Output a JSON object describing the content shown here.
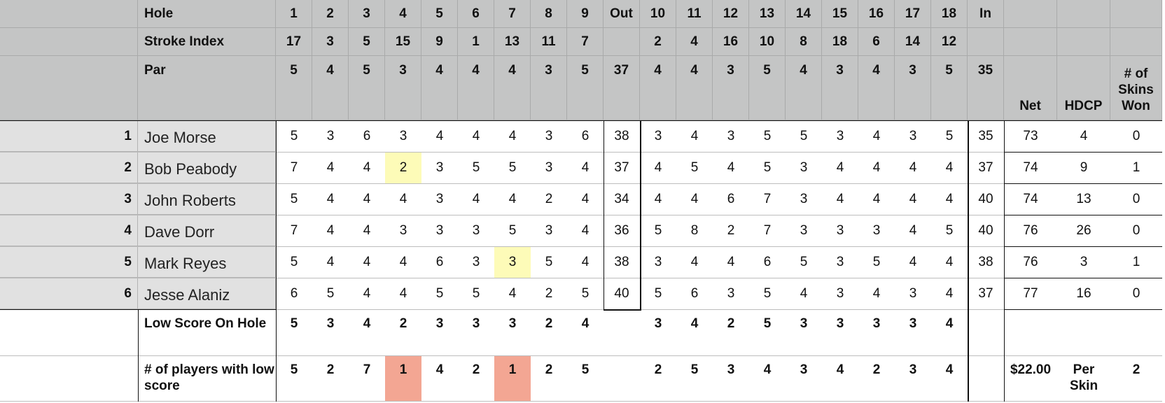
{
  "header_rows": [
    {
      "label": "Hole",
      "values": [
        "1",
        "2",
        "3",
        "4",
        "5",
        "6",
        "7",
        "8",
        "9",
        "Out",
        "10",
        "11",
        "12",
        "13",
        "14",
        "15",
        "16",
        "17",
        "18",
        "In"
      ]
    },
    {
      "label": "Stroke Index",
      "values": [
        "17",
        "3",
        "5",
        "15",
        "9",
        "1",
        "13",
        "11",
        "7",
        "",
        "2",
        "4",
        "16",
        "10",
        "8",
        "18",
        "6",
        "14",
        "12",
        ""
      ]
    },
    {
      "label": "Par",
      "values": [
        "5",
        "4",
        "5",
        "3",
        "4",
        "4",
        "4",
        "3",
        "5",
        "37",
        "4",
        "4",
        "3",
        "5",
        "4",
        "3",
        "4",
        "3",
        "5",
        "35"
      ]
    }
  ],
  "summary_headers": [
    "Net",
    "HDCP",
    "# of\nSkins\nWon"
  ],
  "players": [
    {
      "rank": "1",
      "name": "Joe Morse",
      "scores": [
        "5",
        "3",
        "6",
        "3",
        "4",
        "4",
        "4",
        "3",
        "6",
        "38",
        "3",
        "4",
        "3",
        "5",
        "5",
        "3",
        "4",
        "3",
        "5",
        "35"
      ],
      "net": "73",
      "hdcp": "4",
      "skins": "0"
    },
    {
      "rank": "2",
      "name": "Bob Peabody",
      "scores": [
        "7",
        "4",
        "4",
        "2",
        "3",
        "5",
        "5",
        "3",
        "4",
        "37",
        "4",
        "5",
        "4",
        "5",
        "3",
        "4",
        "4",
        "4",
        "4",
        "37"
      ],
      "net": "74",
      "hdcp": "9",
      "skins": "1"
    },
    {
      "rank": "3",
      "name": "John Roberts",
      "scores": [
        "5",
        "4",
        "4",
        "4",
        "3",
        "4",
        "4",
        "2",
        "4",
        "34",
        "4",
        "4",
        "6",
        "7",
        "3",
        "4",
        "4",
        "4",
        "4",
        "40"
      ],
      "net": "74",
      "hdcp": "13",
      "skins": "0"
    },
    {
      "rank": "4",
      "name": "Dave Dorr",
      "scores": [
        "7",
        "4",
        "4",
        "3",
        "3",
        "3",
        "5",
        "3",
        "4",
        "36",
        "5",
        "8",
        "2",
        "7",
        "3",
        "3",
        "3",
        "4",
        "5",
        "40"
      ],
      "net": "76",
      "hdcp": "26",
      "skins": "0"
    },
    {
      "rank": "5",
      "name": "Mark Reyes",
      "scores": [
        "5",
        "4",
        "4",
        "4",
        "6",
        "3",
        "3",
        "5",
        "4",
        "38",
        "3",
        "4",
        "4",
        "6",
        "5",
        "3",
        "5",
        "4",
        "4",
        "38"
      ],
      "net": "76",
      "hdcp": "3",
      "skins": "1"
    },
    {
      "rank": "6",
      "name": "Jesse Alaniz",
      "scores": [
        "6",
        "5",
        "4",
        "4",
        "5",
        "5",
        "4",
        "2",
        "5",
        "40",
        "5",
        "6",
        "3",
        "5",
        "4",
        "3",
        "4",
        "3",
        "4",
        "37"
      ],
      "net": "77",
      "hdcp": "16",
      "skins": "0"
    }
  ],
  "footer_rows": [
    {
      "label": "Low Score On Hole",
      "values": [
        "5",
        "3",
        "4",
        "2",
        "3",
        "3",
        "3",
        "2",
        "4",
        "",
        "3",
        "4",
        "2",
        "5",
        "3",
        "3",
        "3",
        "3",
        "4",
        ""
      ],
      "extra": [
        "",
        "",
        ""
      ]
    },
    {
      "label": "# of players with low score",
      "values": [
        "5",
        "2",
        "7",
        "1",
        "4",
        "2",
        "1",
        "2",
        "5",
        "",
        "2",
        "5",
        "3",
        "4",
        "3",
        "4",
        "2",
        "3",
        "4",
        ""
      ],
      "extra": [
        "$22.00",
        "Per Skin",
        "2"
      ]
    }
  ],
  "highlights": {
    "yellow_color": "#fdfbb8",
    "red_color": "#f3a693",
    "yellow_cells": [
      [
        1,
        3
      ],
      [
        4,
        6
      ]
    ],
    "red_cells": [
      3,
      6
    ]
  }
}
